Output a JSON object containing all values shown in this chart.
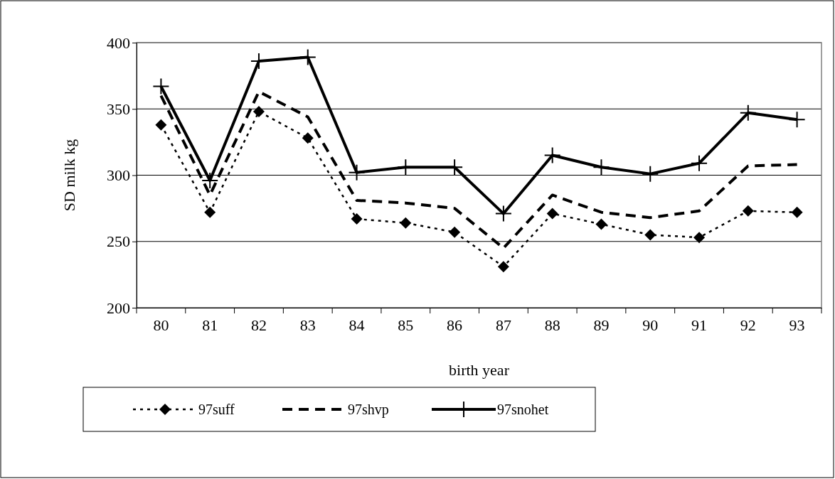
{
  "chart_data": {
    "type": "line",
    "xlabel": "birth year",
    "ylabel": "SD milk kg",
    "categories": [
      "80",
      "81",
      "82",
      "83",
      "84",
      "85",
      "86",
      "87",
      "88",
      "89",
      "90",
      "91",
      "92",
      "93"
    ],
    "ylim": [
      200,
      400
    ],
    "yticks": [
      200,
      250,
      300,
      350,
      400
    ],
    "grid": "y",
    "legend": "bottom",
    "series": [
      {
        "name": "97suff",
        "color": "#000000",
        "marker": "diamond",
        "line_style": "dotted",
        "values": [
          338,
          272,
          348,
          328,
          267,
          264,
          257,
          231,
          271,
          263,
          255,
          253,
          273,
          272
        ]
      },
      {
        "name": "97shvp",
        "color": "#000000",
        "marker": "none",
        "line_style": "dashed",
        "values": [
          360,
          285,
          363,
          344,
          281,
          279,
          275,
          245,
          285,
          272,
          268,
          273,
          307,
          308
        ]
      },
      {
        "name": "97snohet",
        "color": "#000000",
        "marker": "cross",
        "line_style": "solid",
        "values": [
          367,
          296,
          386,
          389,
          302,
          306,
          306,
          271,
          315,
          306,
          301,
          309,
          347,
          342
        ]
      }
    ]
  }
}
